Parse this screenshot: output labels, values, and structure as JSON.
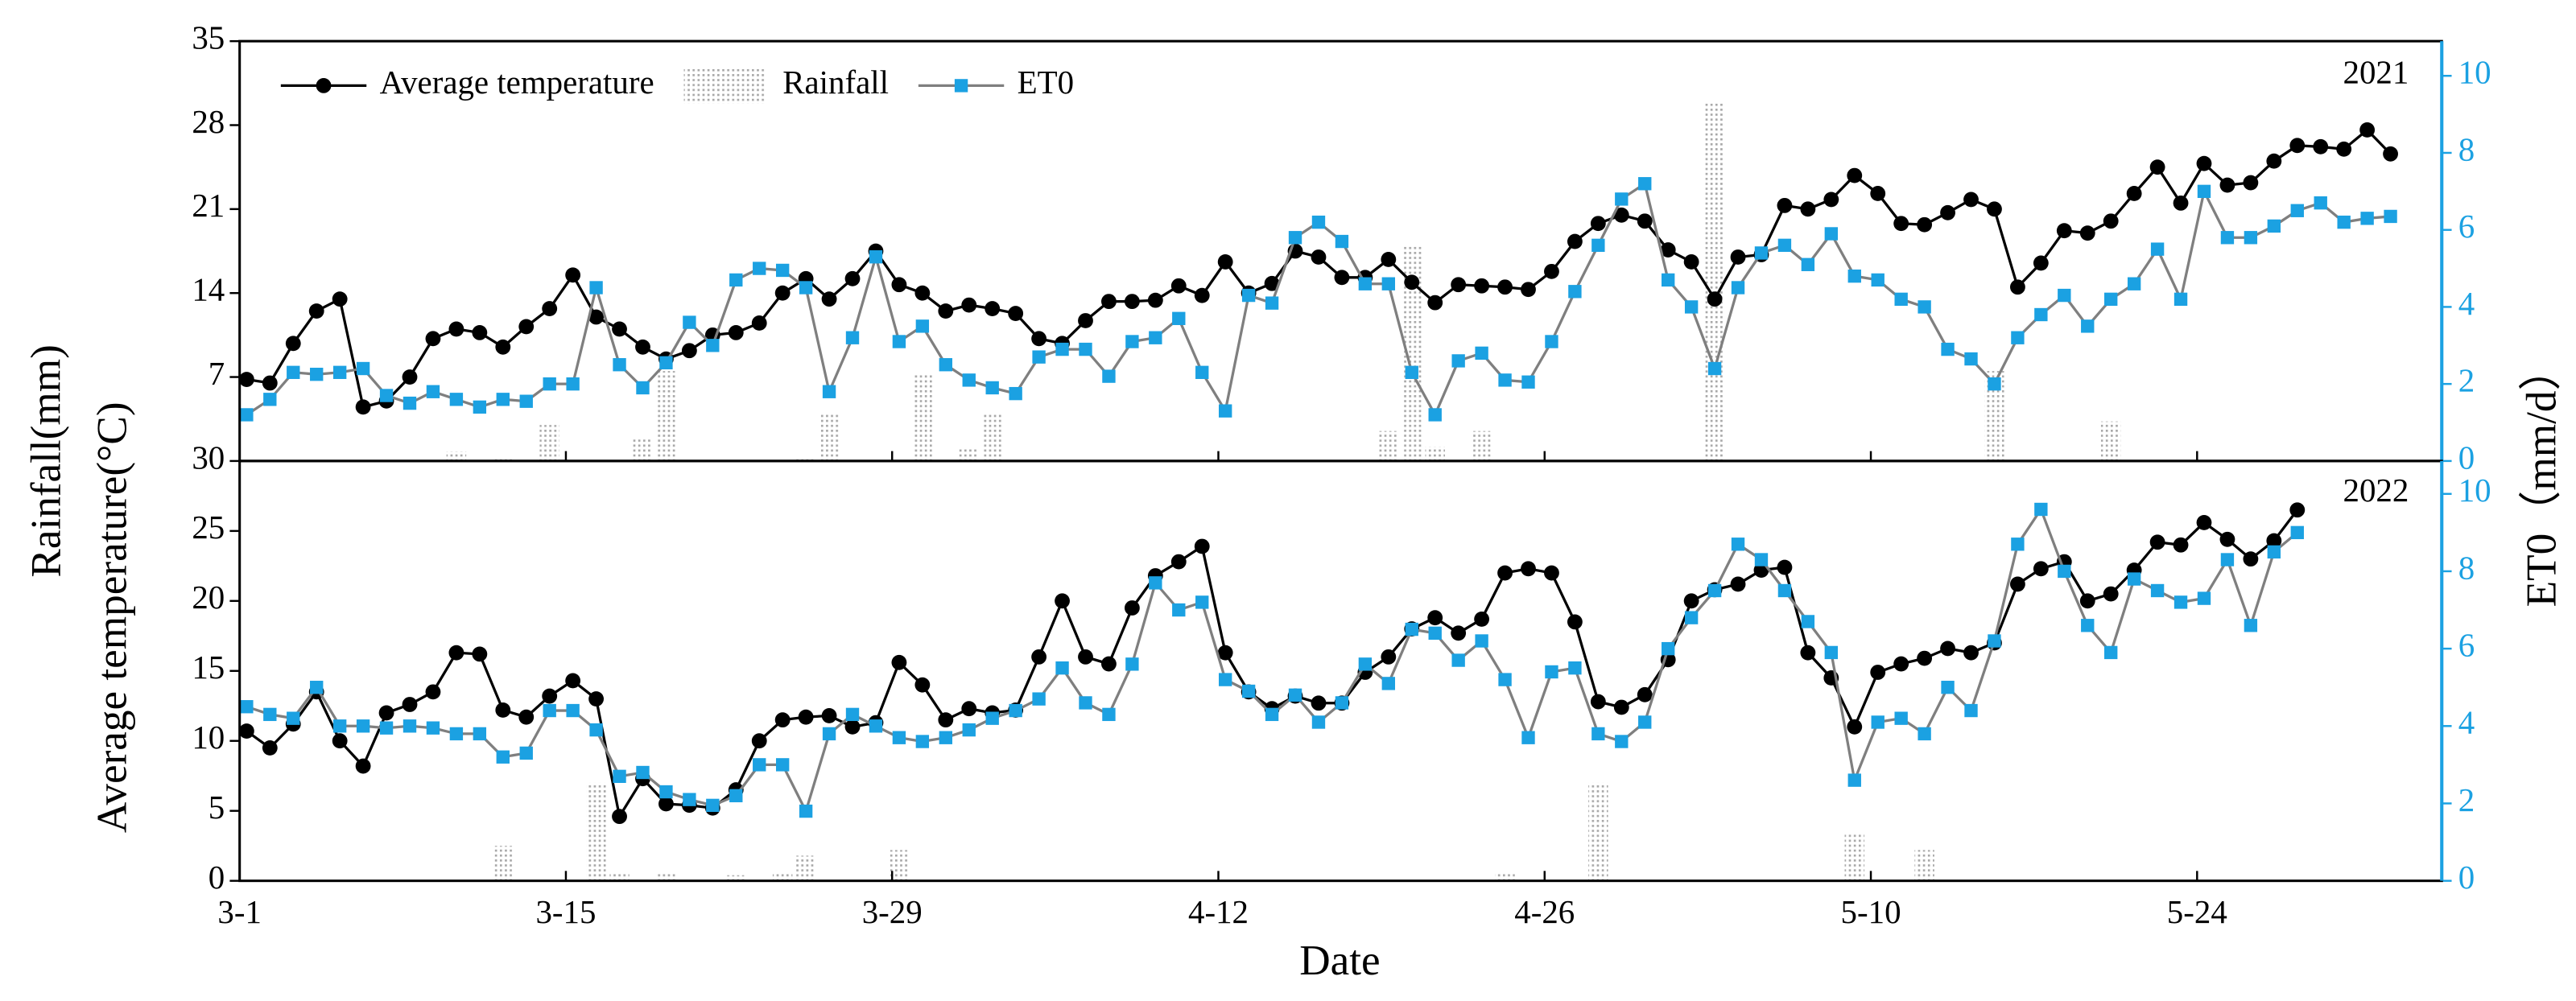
{
  "chart_data": [
    {
      "type": "line",
      "annotation": "2021",
      "ylabel_lines": [
        "Rainfall(mm)",
        "Average temperature(°C)"
      ],
      "y2label": "ET0（mm/d）",
      "ylim": [
        0,
        35
      ],
      "yticks": [
        7,
        14,
        21,
        28,
        35
      ],
      "y2lim": [
        0,
        10.9
      ],
      "y2ticks": [
        0,
        2,
        4,
        6,
        8,
        10
      ],
      "series": [
        {
          "name": "Average temperature",
          "color": "#000000",
          "line_color": "#000000",
          "marker": "circle",
          "values": [
            6.8,
            6.5,
            9.8,
            12.5,
            13.5,
            4.5,
            5,
            7,
            10.2,
            11,
            10.7,
            9.5,
            11.2,
            12.7,
            15.5,
            12,
            11,
            9.5,
            8.5,
            9.2,
            10.5,
            10.7,
            11.5,
            14,
            15.2,
            13.5,
            15.2,
            17.5,
            14.7,
            14,
            12.5,
            13,
            12.7,
            12.3,
            10.2,
            9.8,
            11.7,
            13.3,
            13.3,
            13.4,
            14.6,
            13.8,
            16.6,
            14,
            14.8,
            17.5,
            17,
            15.3,
            15.3,
            16.8,
            14.9,
            13.2,
            14.7,
            14.6,
            14.5,
            14.3,
            15.8,
            18.3,
            19.8,
            20.5,
            20,
            17.6,
            16.6,
            13.5,
            17,
            17.2,
            21.3,
            21,
            21.8,
            23.8,
            22.3,
            19.8,
            19.7,
            20.7,
            21.8,
            21,
            14.5,
            16.5,
            19.2,
            19,
            20,
            22.3,
            24.5,
            21.5,
            24.8,
            23,
            23.2,
            25,
            26.3,
            26.2,
            26,
            27.6,
            25.6
          ]
        },
        {
          "name": "Rainfall",
          "type": "bar",
          "color": "#a8a8a8",
          "values": [
            0,
            0,
            0,
            0,
            0,
            0,
            0,
            0,
            0,
            0.8,
            0,
            0.3,
            0,
            3,
            0,
            0,
            0,
            2,
            7.5,
            0,
            0,
            0,
            0,
            0,
            0.3,
            4,
            0,
            0,
            0,
            7.3,
            0,
            1,
            4,
            0,
            0,
            0,
            0,
            0,
            0,
            0,
            0,
            0,
            0,
            0,
            0,
            0,
            0,
            0,
            0,
            2.5,
            18,
            1.2,
            0,
            2.5,
            0,
            0,
            0,
            0,
            0,
            0,
            0,
            0,
            0,
            29.8,
            0,
            0,
            0,
            0,
            0,
            0,
            0,
            0,
            0,
            0,
            0,
            7.5,
            0,
            0,
            0,
            0,
            3.3,
            0,
            0,
            0,
            0,
            0,
            0,
            0,
            0,
            0,
            0,
            0,
            0
          ]
        },
        {
          "name": "ET0",
          "color": "#1ba1e2",
          "line_color": "#7f7f7f",
          "marker": "square",
          "axis": "y2",
          "values": [
            1.2,
            1.6,
            2.3,
            2.25,
            2.3,
            2.4,
            1.7,
            1.5,
            1.8,
            1.6,
            1.4,
            1.6,
            1.55,
            2.0,
            2.0,
            4.5,
            2.5,
            1.9,
            2.55,
            3.6,
            3.0,
            4.7,
            5.0,
            4.95,
            4.5,
            1.8,
            3.2,
            5.3,
            3.1,
            3.5,
            2.5,
            2.1,
            1.9,
            1.75,
            2.7,
            2.9,
            2.9,
            2.2,
            3.1,
            3.2,
            3.7,
            2.3,
            1.3,
            4.3,
            4.1,
            5.8,
            6.2,
            5.7,
            4.6,
            4.6,
            2.3,
            1.2,
            2.6,
            2.8,
            2.1,
            2.05,
            3.1,
            4.4,
            5.6,
            6.8,
            7.2,
            4.7,
            4.0,
            2.4,
            4.5,
            5.4,
            5.6,
            5.1,
            5.9,
            4.8,
            4.7,
            4.2,
            4.0,
            2.9,
            2.65,
            2.0,
            3.2,
            3.8,
            4.3,
            3.5,
            4.2,
            4.6,
            5.5,
            4.2,
            7.0,
            5.8,
            5.8,
            6.1,
            6.5,
            6.7,
            6.2,
            6.3,
            6.35
          ]
        }
      ]
    },
    {
      "type": "line",
      "annotation": "2022",
      "xlabel": "Date",
      "categories": [
        "3-1",
        null,
        null,
        null,
        null,
        null,
        null,
        null,
        null,
        null,
        null,
        null,
        null,
        null,
        "3-15",
        null,
        null,
        null,
        null,
        null,
        null,
        null,
        null,
        null,
        null,
        null,
        null,
        null,
        "3-29",
        null,
        null,
        null,
        null,
        null,
        null,
        null,
        null,
        null,
        null,
        null,
        null,
        null,
        "4-12",
        null,
        null,
        null,
        null,
        null,
        null,
        null,
        null,
        null,
        null,
        null,
        null,
        null,
        "4-26",
        null,
        null,
        null,
        null,
        null,
        null,
        null,
        null,
        null,
        null,
        null,
        null,
        null,
        "5-10",
        null,
        null,
        null,
        null,
        null,
        null,
        null,
        null,
        null,
        null,
        null,
        null,
        null,
        "5-24",
        null,
        null,
        null,
        null
      ],
      "ylim": [
        0,
        30
      ],
      "yticks": [
        0,
        5,
        10,
        15,
        20,
        25,
        30
      ],
      "y2lim": [
        0,
        10.85
      ],
      "y2ticks": [
        0,
        2,
        4,
        6,
        8,
        10
      ],
      "series": [
        {
          "color": "#000000",
          "line_color": "#000000",
          "marker": "circle",
          "values": [
            10.7,
            9.5,
            11.2,
            13.5,
            10,
            8.2,
            12,
            12.6,
            13.5,
            16.3,
            16.2,
            12.2,
            11.7,
            13.2,
            14.3,
            13,
            4.6,
            7.3,
            5.5,
            5.4,
            5.2,
            6.5,
            10,
            11.5,
            11.7,
            11.8,
            11,
            11.3,
            15.6,
            14,
            11.5,
            12.3,
            12,
            12.2,
            16,
            20,
            16,
            15.5,
            19.5,
            21.8,
            22.8,
            23.9,
            16.3,
            13.5,
            12.3,
            13.2,
            12.7,
            12.7,
            14.9,
            16,
            18,
            18.8,
            17.7,
            18.7,
            22,
            22.3,
            22,
            18.5,
            12.8,
            12.4,
            13.3,
            15.8,
            20,
            20.8,
            21.2,
            22.2,
            22.4,
            16.3,
            14.5,
            11,
            14.9,
            15.5,
            15.9,
            16.6,
            16.3,
            17,
            21.2,
            22.3,
            22.8,
            20,
            20.5,
            22.2,
            24.2,
            24,
            25.6,
            24.4,
            23,
            24.3,
            26.5
          ]
        },
        {
          "type": "bar",
          "color": "#a8a8a8",
          "values": [
            0,
            0,
            0,
            0,
            0,
            0,
            0,
            0,
            0,
            0,
            0,
            2.5,
            0,
            0,
            0,
            7,
            0.5,
            0,
            0.5,
            0,
            0,
            0.4,
            0,
            0.5,
            1.8,
            0,
            0,
            0,
            2.2,
            0,
            0,
            0,
            0,
            0,
            0,
            0,
            0,
            0,
            0,
            0,
            0,
            0,
            0,
            0,
            0,
            0,
            0,
            0,
            0,
            0,
            0,
            0,
            0,
            0,
            0.6,
            0,
            0,
            0,
            7,
            0,
            0,
            0,
            0,
            0,
            0,
            0,
            0,
            0,
            0,
            3.3,
            0,
            0,
            2.2,
            0,
            0,
            0,
            0,
            0,
            0,
            0,
            0,
            0,
            0,
            0,
            0,
            0,
            0,
            0,
            0
          ]
        },
        {
          "color": "#1ba1e2",
          "line_color": "#7f7f7f",
          "marker": "square",
          "axis": "y2",
          "values": [
            4.5,
            4.3,
            4.2,
            5.0,
            4.0,
            4.0,
            3.95,
            4.0,
            3.95,
            3.8,
            3.8,
            3.2,
            3.3,
            4.4,
            4.4,
            3.9,
            2.7,
            2.8,
            2.3,
            2.1,
            1.95,
            2.2,
            3.0,
            3.0,
            1.8,
            3.8,
            4.3,
            4.0,
            3.7,
            3.6,
            3.7,
            3.9,
            4.2,
            4.4,
            4.7,
            5.5,
            4.6,
            4.3,
            5.6,
            7.7,
            7.0,
            7.2,
            5.2,
            4.9,
            4.3,
            4.8,
            4.1,
            4.6,
            5.6,
            5.1,
            6.5,
            6.4,
            5.7,
            6.2,
            5.2,
            3.7,
            5.4,
            5.5,
            3.8,
            3.6,
            4.1,
            6.0,
            6.8,
            7.5,
            8.7,
            8.3,
            7.5,
            6.7,
            5.9,
            2.6,
            4.1,
            4.2,
            3.8,
            5.0,
            4.4,
            6.2,
            8.7,
            9.6,
            8.0,
            6.6,
            5.9,
            7.8,
            7.5,
            7.2,
            7.3,
            8.3,
            6.6,
            8.5,
            9.0
          ]
        }
      ]
    }
  ]
}
